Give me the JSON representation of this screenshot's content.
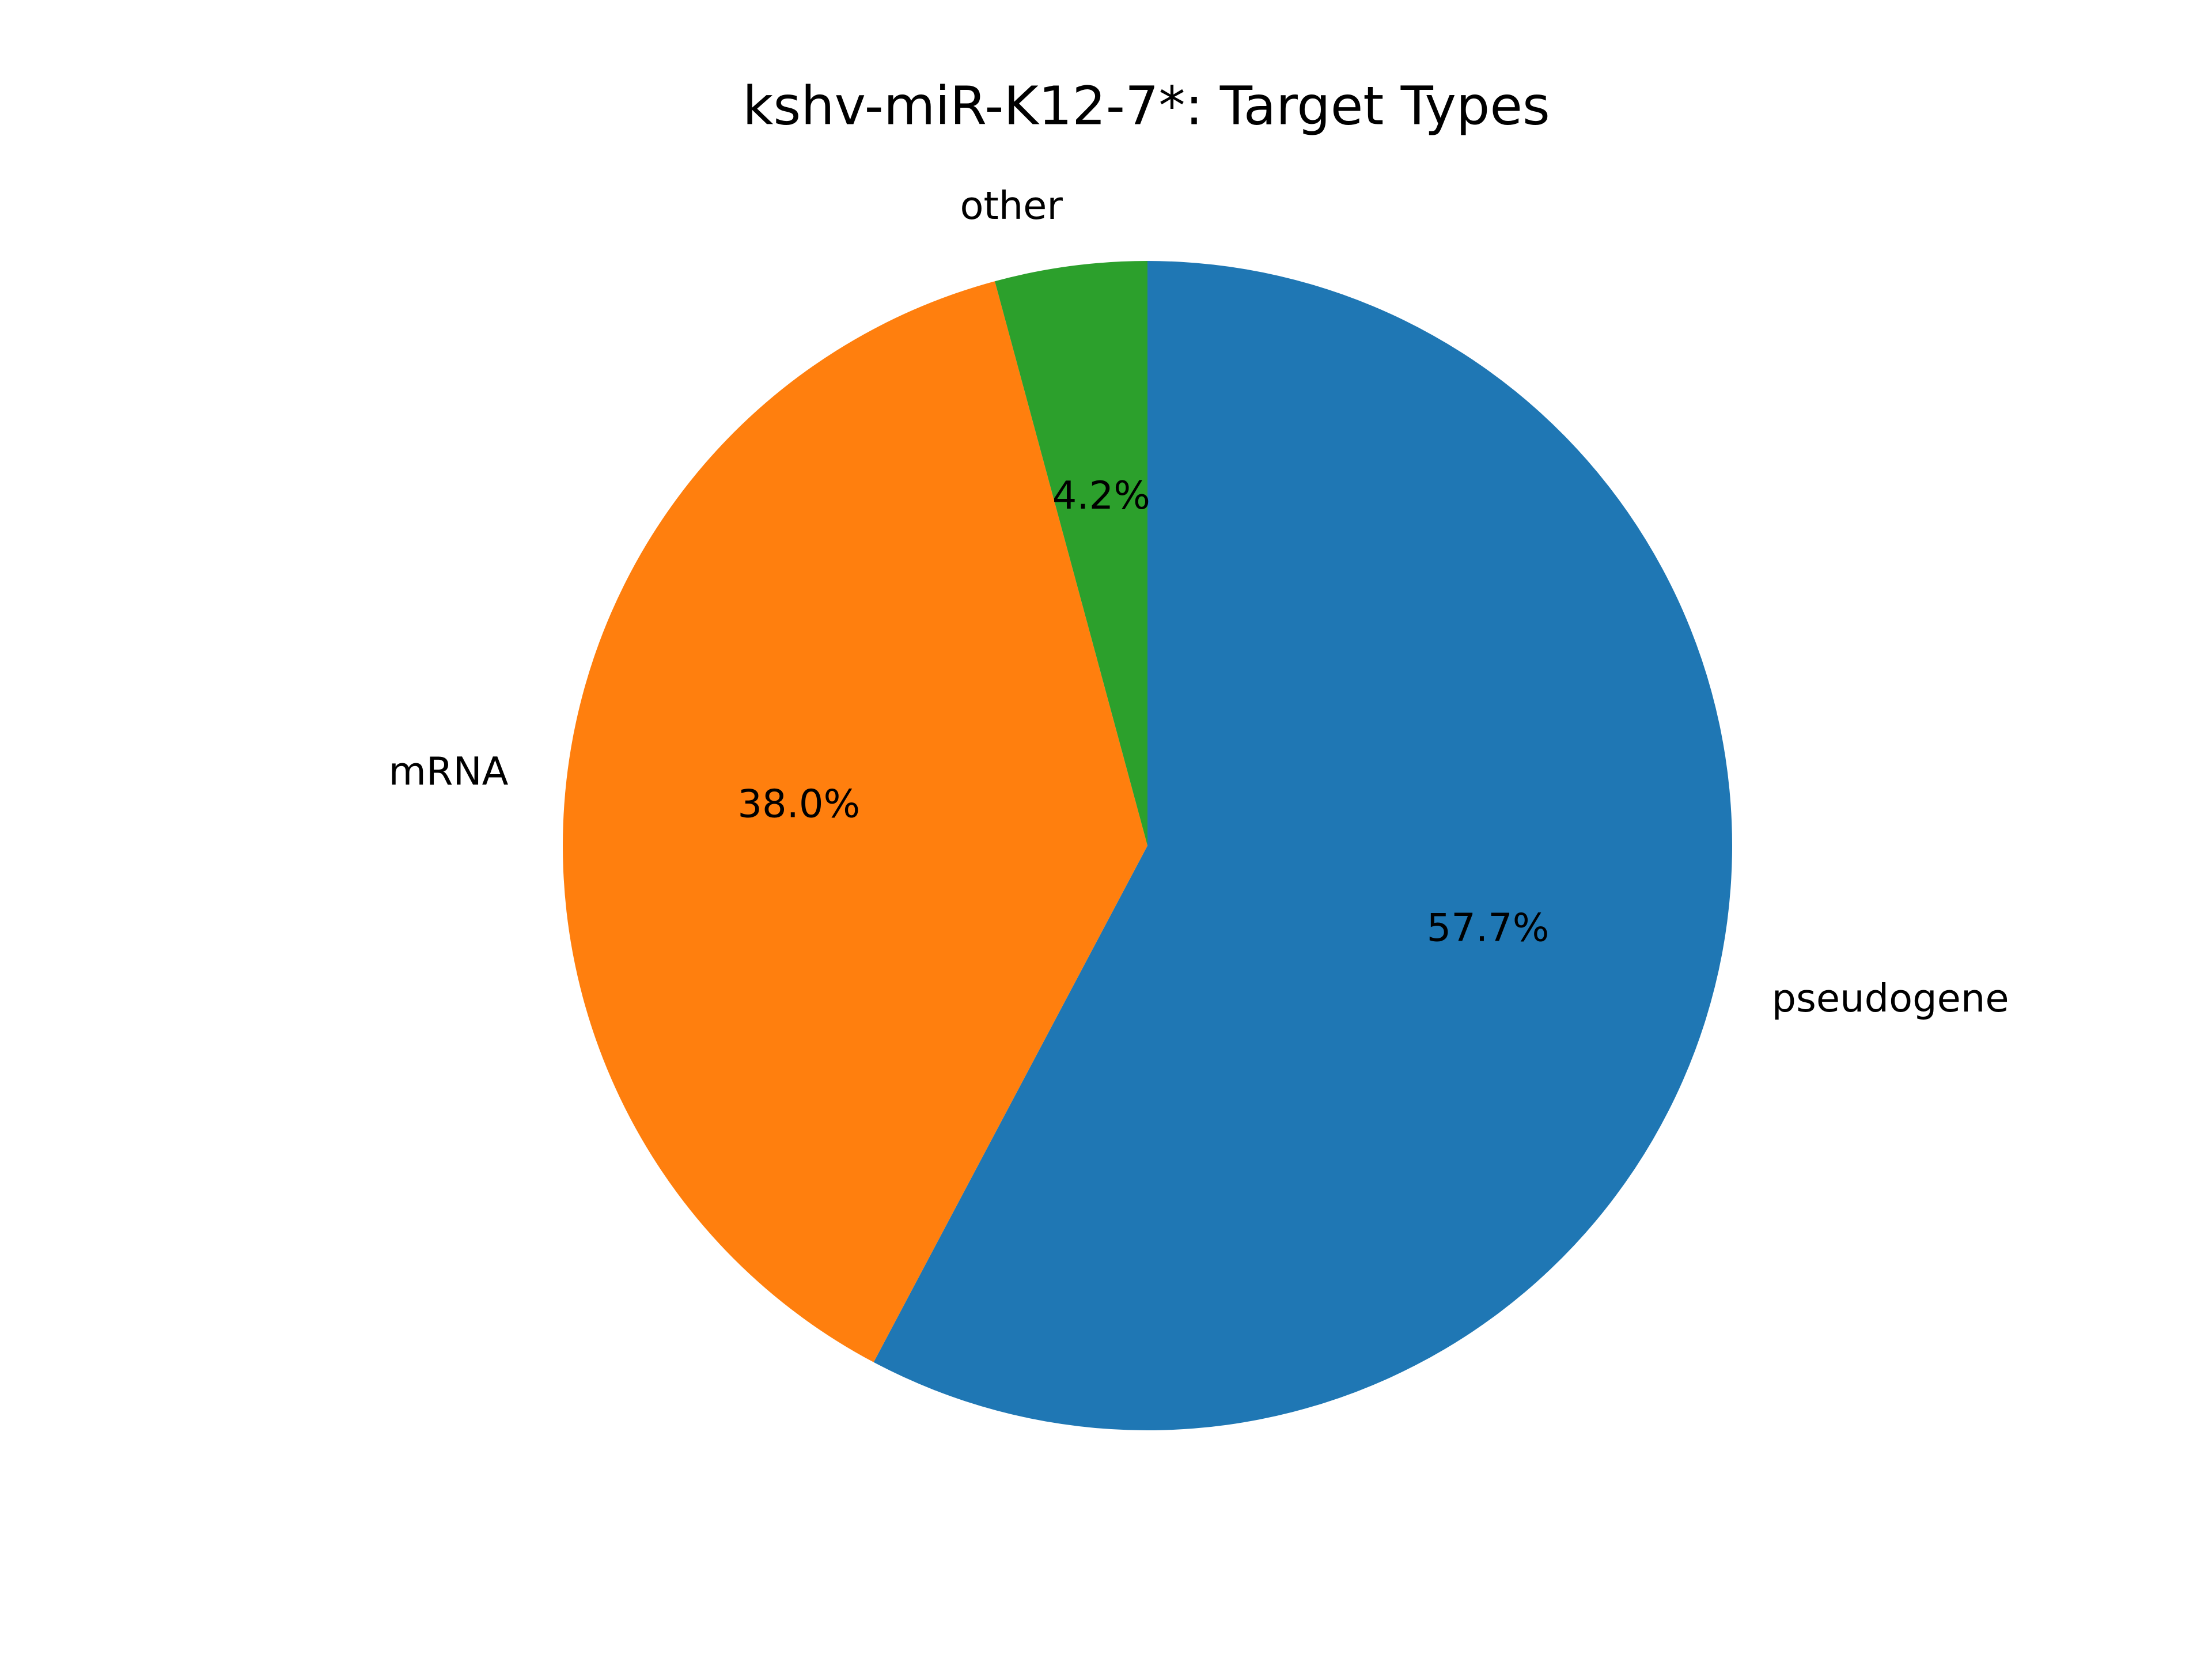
{
  "chart_data": {
    "type": "pie",
    "title": "kshv-miR-K12-7*: Target Types",
    "slices": [
      {
        "label": "pseudogene",
        "value": 57.7,
        "pct_label": "57.7%",
        "color": "#1f77b4"
      },
      {
        "label": "mRNA",
        "value": 38.0,
        "pct_label": "38.0%",
        "color": "#ff7f0e"
      },
      {
        "label": "other",
        "value": 4.2,
        "pct_label": "4.2%",
        "color": "#2ca02c"
      }
    ],
    "start_angle": "12 o'clock",
    "direction": "clockwise",
    "legend": "none"
  }
}
